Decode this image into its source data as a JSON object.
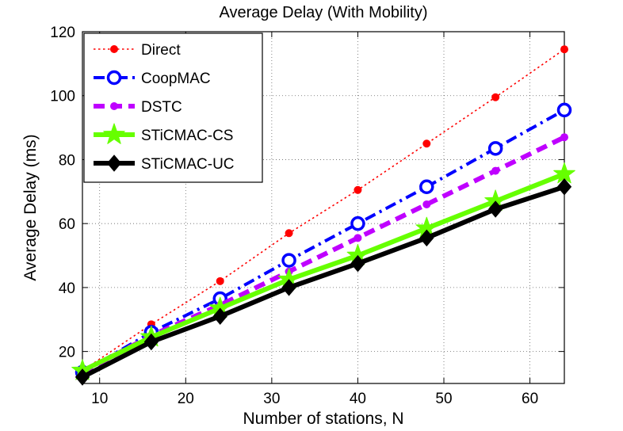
{
  "chart_data": {
    "type": "line",
    "title": "Average Delay (With Mobility)",
    "xlabel": "Number of stations, N",
    "ylabel": "Average Delay (ms)",
    "xlim": [
      8,
      64
    ],
    "ylim": [
      10,
      120
    ],
    "xticks": [
      10,
      20,
      30,
      40,
      50,
      60
    ],
    "yticks": [
      20,
      40,
      60,
      80,
      100,
      120
    ],
    "grid": true,
    "legend_position": "top-left",
    "x": [
      8,
      16,
      24,
      32,
      40,
      48,
      56,
      64
    ],
    "series": [
      {
        "name": "Direct",
        "values": [
          14.0,
          28.5,
          42.0,
          57.0,
          70.5,
          85.0,
          99.5,
          114.5
        ],
        "color": "#ff0000",
        "line_style": "dotted",
        "marker": "dot"
      },
      {
        "name": "CoopMAC",
        "values": [
          13.5,
          26.0,
          36.5,
          48.5,
          60.0,
          71.5,
          83.5,
          95.5
        ],
        "color": "#0000ff",
        "line_style": "dashdot",
        "marker": "circle"
      },
      {
        "name": "DSTC",
        "values": [
          13.5,
          25.0,
          34.5,
          45.0,
          55.5,
          66.0,
          76.5,
          87.0
        ],
        "color": "#bf00ff",
        "line_style": "dashed",
        "marker": "dot"
      },
      {
        "name": "STiCMAC-CS",
        "values": [
          14.0,
          24.5,
          33.5,
          42.5,
          50.0,
          58.5,
          67.0,
          75.5
        ],
        "color": "#66ff00",
        "line_style": "solid",
        "marker": "star"
      },
      {
        "name": "STiCMAC-UC",
        "values": [
          12.0,
          23.0,
          31.0,
          40.0,
          47.5,
          55.5,
          64.5,
          71.5
        ],
        "color": "#000000",
        "line_style": "solid",
        "marker": "diamond"
      }
    ]
  }
}
